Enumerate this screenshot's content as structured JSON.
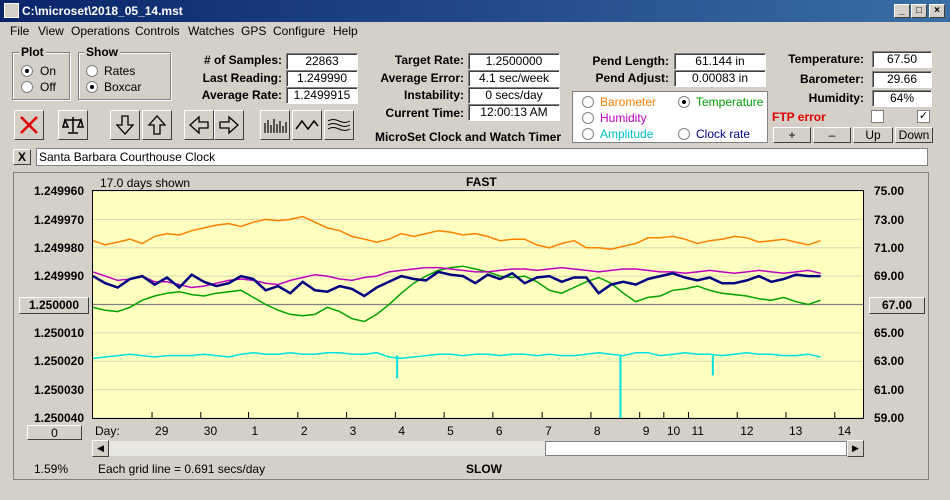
{
  "window": {
    "title": "C:\\microset\\2018_05_14.mst"
  },
  "menu": [
    "File",
    "View",
    "Operations",
    "Controls",
    "Watches",
    "GPS",
    "Configure",
    "Help"
  ],
  "plot_group": {
    "title": "Plot",
    "options": [
      "On",
      "Off"
    ],
    "selected": "On"
  },
  "show_group": {
    "title": "Show",
    "options": [
      "Rates",
      "Boxcar"
    ],
    "selected": "Boxcar"
  },
  "stats": {
    "samples_label": "# of Samples:",
    "samples": "22863",
    "last_label": "Last Reading:",
    "last": "1.249990",
    "avg_rate_label": "Average Rate:",
    "avg_rate": "1.2499915"
  },
  "rates": {
    "target_label": "Target Rate:",
    "target": "1.2500000",
    "avg_error_label": "Average Error:",
    "avg_error": "4.1 sec/week",
    "instability_label": "Instability:",
    "instability": "0 secs/day",
    "current_time_label": "Current Time:",
    "current_time": "12:00:13 AM"
  },
  "app_name": "MicroSet Clock and Watch Timer",
  "pendulum": {
    "length_label": "Pend Length:",
    "length": "61.144 in",
    "adjust_label": "Pend Adjust:",
    "adjust": "0.00083 in"
  },
  "sensor_select": {
    "options": [
      {
        "label": "Barometer",
        "color": "#ff8000"
      },
      {
        "label": "Temperature",
        "color": "#00a000"
      },
      {
        "label": "Humidity",
        "color": "#c000c0"
      },
      {
        "label": "Amplitude",
        "color": "#00c0c0"
      },
      {
        "label": "Clock rate",
        "color": "#000080"
      }
    ],
    "selected": "Temperature"
  },
  "environment": {
    "temp_label": "Temperature:",
    "temp": "67.50",
    "baro_label": "Barometer:",
    "baro": "29.66",
    "humid_label": "Humidity:",
    "humid": "64%"
  },
  "ftp_error": "FTP error",
  "adjust_buttons": [
    "+",
    "–",
    "Up",
    "Down"
  ],
  "clock_name": "Santa Barbara Courthouse Clock",
  "close_x": "X",
  "chart": {
    "days_shown": "17.0 days shown",
    "top_label": "FAST",
    "bottom_label": "SLOW",
    "grid_note": "Each grid line = 0.691 secs/day",
    "left_value_btn": "1.250000",
    "right_value_btn": "67.00",
    "zero_btn": "0",
    "percent": "1.59%",
    "day_label": "Day:"
  },
  "chart_data": {
    "type": "line",
    "y_left_ticks": [
      "1.249960",
      "1.249970",
      "1.249980",
      "1.249990",
      "1.250000",
      "1.250010",
      "1.250020",
      "1.250030",
      "1.250040"
    ],
    "y_right_ticks": [
      "75.00",
      "73.00",
      "71.00",
      "69.00",
      "67.00",
      "65.00",
      "63.00",
      "61.00",
      "59.00"
    ],
    "x_ticks": [
      "29",
      "30",
      "1",
      "2",
      "3",
      "4",
      "5",
      "6",
      "7",
      "8",
      "9",
      "10",
      "11",
      "12",
      "13",
      "14"
    ],
    "x_tick_pos": [
      0.115,
      0.21,
      0.303,
      0.399,
      0.494,
      0.589,
      0.684,
      0.779,
      0.875,
      0.97,
      1.065,
      1.112,
      1.16,
      1.255,
      1.35,
      1.445
    ],
    "series": [
      {
        "color": "#ff8000",
        "values": [
          71.5,
          71.2,
          71.4,
          71.6,
          71.3,
          71.8,
          72.0,
          71.9,
          72.2,
          72.4,
          72.6,
          72.7,
          72.5,
          72.8,
          73.0,
          72.9,
          73.0,
          73.2,
          72.8,
          72.4,
          72.2,
          71.8,
          71.6,
          71.4,
          71.6,
          72.0,
          71.8,
          72.0,
          72.2,
          72.1,
          71.9,
          72.0,
          71.8,
          71.5,
          71.6,
          71.6,
          71.2,
          71.0,
          71.3,
          71.5,
          71.0,
          71.0,
          70.9,
          71.1,
          71.3,
          71.7,
          71.7,
          71.8,
          71.6,
          71.3,
          71.5,
          71.6,
          71.8,
          71.7,
          71.4,
          71.5,
          71.6,
          71.4,
          71.2,
          71.5
        ]
      },
      {
        "color": "#00a000",
        "values": [
          66.8,
          66.6,
          66.5,
          66.8,
          67.3,
          67.6,
          67.8,
          67.9,
          67.7,
          67.6,
          67.8,
          67.9,
          68.0,
          67.5,
          67.0,
          66.6,
          66.3,
          66.2,
          66.3,
          66.8,
          66.5,
          66.0,
          65.8,
          66.3,
          67.0,
          67.8,
          68.5,
          69.0,
          69.4,
          69.6,
          69.7,
          69.5,
          69.3,
          69.0,
          68.9,
          69.0,
          68.6,
          68.0,
          67.8,
          68.2,
          68.6,
          68.9,
          68.5,
          67.8,
          67.2,
          67.5,
          67.6,
          68.0,
          68.1,
          68.3,
          68.0,
          67.8,
          67.7,
          67.6,
          67.4,
          67.3,
          67.5,
          67.2,
          67.0,
          67.3
        ]
      },
      {
        "color": "#c000c0",
        "values": [
          69.3,
          69.0,
          68.7,
          68.8,
          69.0,
          68.6,
          68.6,
          68.4,
          68.2,
          68.3,
          68.5,
          68.7,
          68.8,
          68.7,
          68.5,
          68.4,
          68.7,
          68.9,
          69.1,
          69.0,
          68.8,
          68.7,
          68.9,
          69.0,
          69.3,
          69.4,
          69.5,
          69.6,
          69.6,
          69.5,
          69.4,
          69.3,
          69.3,
          69.4,
          69.5,
          69.5,
          69.4,
          69.5,
          69.6,
          69.5,
          69.4,
          69.3,
          69.4,
          69.5,
          69.5,
          69.4,
          69.3,
          69.3,
          69.2,
          69.3,
          69.4,
          69.3,
          69.2,
          69.3,
          69.4,
          69.3,
          69.2,
          69.3,
          69.4,
          69.2
        ]
      },
      {
        "color": "#00e0e0",
        "values": [
          63.2,
          63.3,
          63.4,
          63.5,
          63.4,
          63.3,
          63.4,
          63.4,
          63.4,
          63.5,
          63.4,
          63.3,
          63.5,
          63.6,
          63.5,
          63.5,
          63.6,
          63.5,
          63.5,
          63.6,
          63.6,
          63.5,
          63.5,
          63.6,
          63.3,
          63.2,
          63.3,
          63.4,
          63.5,
          63.5,
          63.4,
          63.5,
          63.5,
          63.4,
          63.5,
          63.5,
          63.4,
          63.5,
          63.4,
          63.4,
          63.5,
          63.6,
          63.5,
          63.4,
          63.6,
          63.6,
          63.4,
          63.5,
          63.6,
          63.5,
          63.5,
          63.4,
          63.5,
          63.6,
          63.5,
          63.5,
          63.4,
          63.4,
          63.5,
          63.3
        ]
      },
      {
        "color": "#000080",
        "values": [
          69.0,
          68.5,
          68.2,
          68.8,
          69.0,
          68.4,
          68.9,
          68.2,
          69.1,
          68.6,
          68.3,
          68.5,
          69.0,
          68.8,
          68.0,
          68.3,
          67.8,
          68.6,
          68.0,
          67.9,
          68.3,
          68.1,
          67.6,
          68.2,
          68.6,
          69.0,
          68.8,
          68.7,
          69.3,
          69.1,
          69.0,
          68.5,
          69.1,
          68.8,
          69.2,
          68.5,
          68.9,
          69.0,
          68.6,
          68.9,
          68.9,
          67.8,
          68.4,
          68.6,
          68.4,
          68.8,
          69.0,
          69.2,
          68.9,
          68.7,
          68.9,
          68.5,
          68.5,
          68.7,
          69.0,
          68.6,
          68.8,
          69.1,
          69.0,
          69.0
        ]
      }
    ]
  }
}
